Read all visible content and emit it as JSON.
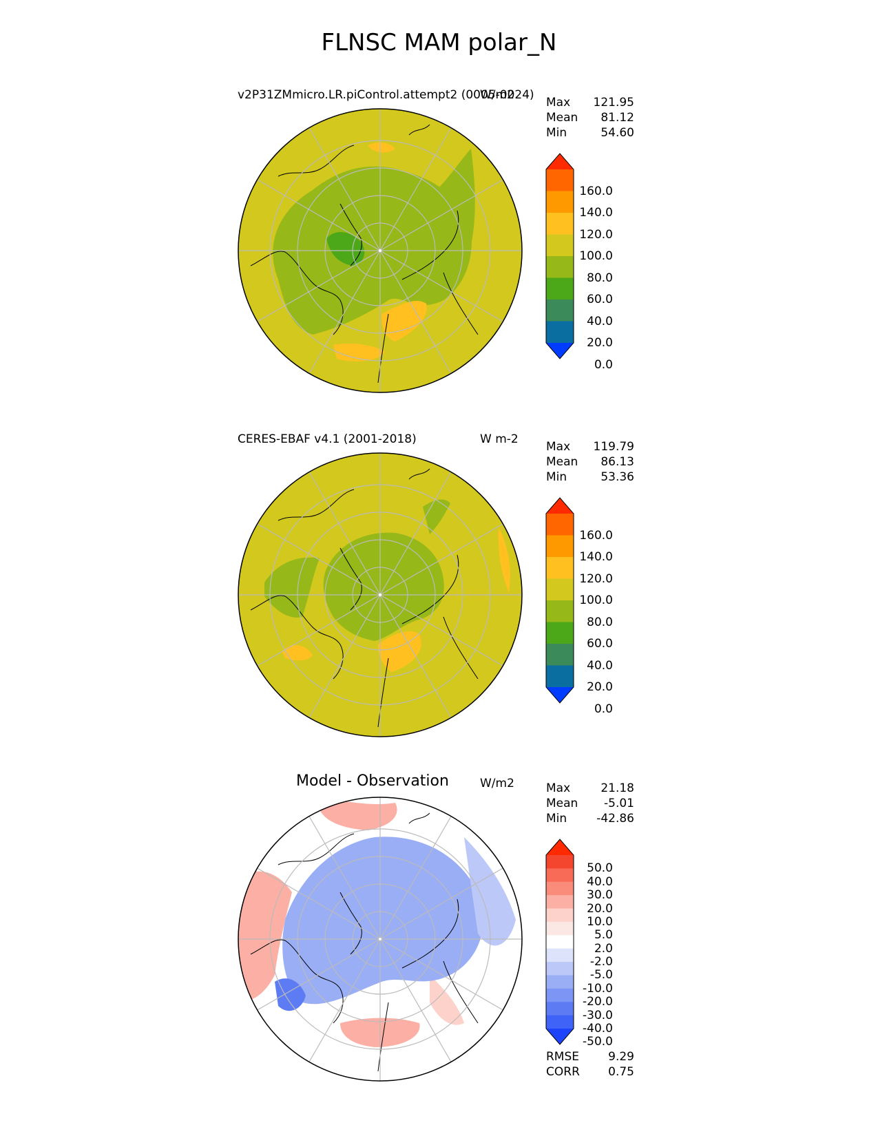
{
  "title": "FLNSC MAM polar_N",
  "panels": [
    {
      "title_left": "v2P31ZMmicro.LR.piControl.attempt2 (0005-0024)",
      "units": "W/m2",
      "stats": [
        {
          "label": "Max",
          "value": "121.95"
        },
        {
          "label": "Mean",
          "value": "81.12"
        },
        {
          "label": "Min",
          "value": "54.60"
        }
      ],
      "colorbar": {
        "ticks": [
          "160.0",
          "140.0",
          "120.0",
          "100.0",
          "80.0",
          "60.0",
          "40.0",
          "20.0",
          "0.0"
        ],
        "colors": [
          "#ff2a00",
          "#ff6600",
          "#ff9900",
          "#ffc020",
          "#d2c81e",
          "#96b818",
          "#4ca818",
          "#3a8a5a",
          "#0a6ea0",
          "#003cff"
        ]
      }
    },
    {
      "title_left": "CERES-EBAF v4.1 (2001-2018)",
      "units": "W m-2",
      "stats": [
        {
          "label": "Max",
          "value": "119.79"
        },
        {
          "label": "Mean",
          "value": "86.13"
        },
        {
          "label": "Min",
          "value": "53.36"
        }
      ],
      "colorbar": {
        "ticks": [
          "160.0",
          "140.0",
          "120.0",
          "100.0",
          "80.0",
          "60.0",
          "40.0",
          "20.0",
          "0.0"
        ],
        "colors": [
          "#ff2a00",
          "#ff6600",
          "#ff9900",
          "#ffc020",
          "#d2c81e",
          "#96b818",
          "#4ca818",
          "#3a8a5a",
          "#0a6ea0",
          "#003cff"
        ]
      }
    },
    {
      "title_center": "Model - Observation",
      "units": "W/m2",
      "stats": [
        {
          "label": "Max",
          "value": "21.18"
        },
        {
          "label": "Mean",
          "value": "-5.01"
        },
        {
          "label": "Min",
          "value": "-42.86"
        }
      ],
      "colorbar": {
        "ticks": [
          "50.0",
          "40.0",
          "30.0",
          "20.0",
          "10.0",
          "5.0",
          "2.0",
          "-2.0",
          "-5.0",
          "-10.0",
          "-20.0",
          "-30.0",
          "-40.0",
          "-50.0"
        ],
        "colors": [
          "#ff2a00",
          "#f4452f",
          "#f76b57",
          "#fa8c7c",
          "#fcb0a5",
          "#fdd2cb",
          "#fbe8e5",
          "#ffffff",
          "#dde3fb",
          "#bcc8f8",
          "#9aaef5",
          "#7d95f4",
          "#5d7cf3",
          "#3f62f7",
          "#1d44fb"
        ]
      },
      "metrics": [
        {
          "label": "RMSE",
          "value": "9.29"
        },
        {
          "label": "CORR",
          "value": "0.75"
        }
      ]
    }
  ],
  "palette": {
    "model_base": "#d2c81e",
    "model_mid": "#96b818",
    "model_low": "#4ca818",
    "model_high": "#ffc020",
    "diff_neg": "#9aaef5",
    "diff_neg_strong": "#5d7cf3",
    "diff_pos": "#fcb0a5",
    "diff_zero": "#ffffff"
  }
}
